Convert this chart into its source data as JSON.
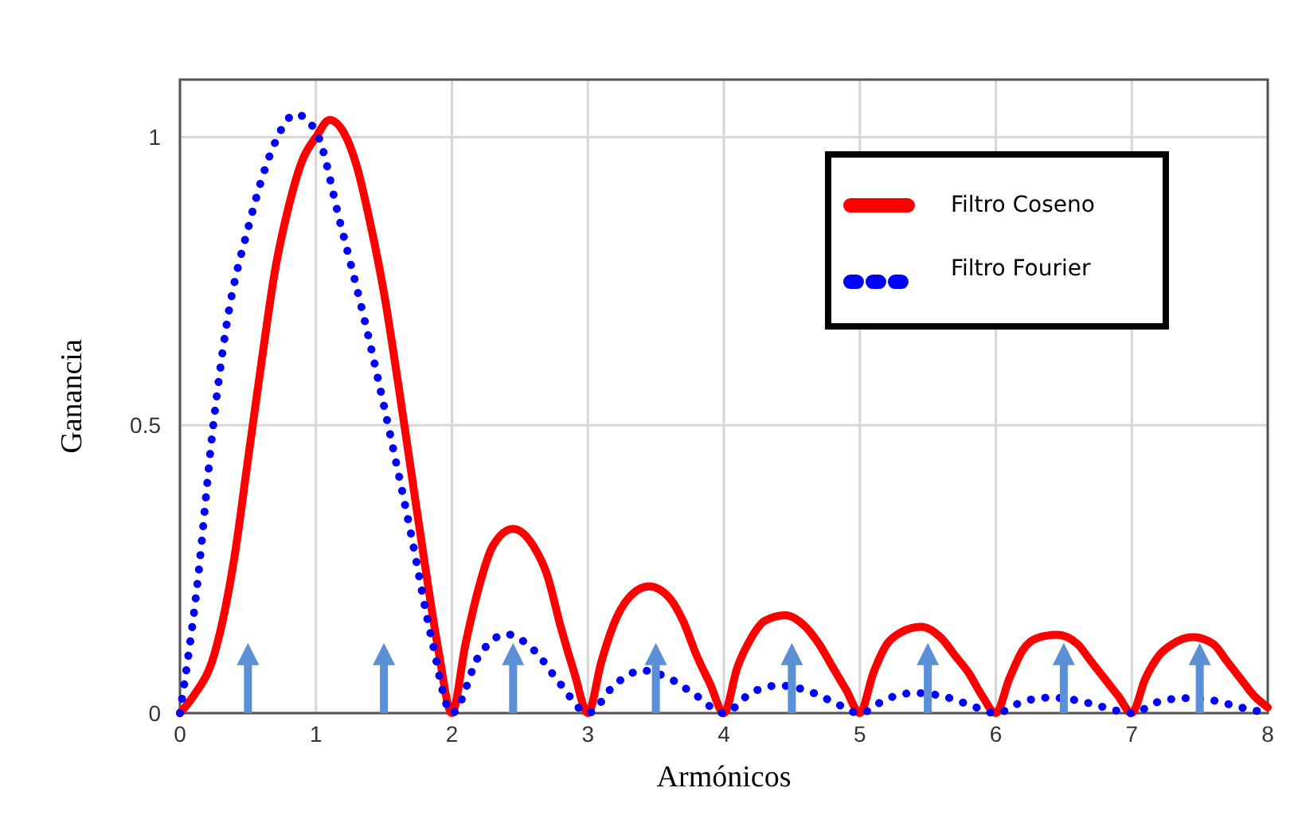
{
  "chart_data": {
    "type": "line",
    "xlabel": "Armónicos",
    "ylabel": "Ganancia",
    "xlim": [
      0,
      8
    ],
    "ylim": [
      0,
      1.1
    ],
    "xticks": [
      0,
      1,
      2,
      3,
      4,
      5,
      6,
      7,
      8
    ],
    "yticks": [
      0,
      0.5,
      1
    ],
    "grid": true,
    "legend": "top right",
    "series": [
      {
        "name": "Filtro Coseno",
        "color": "#ff0000",
        "line_style": "solid",
        "x": [
          0,
          0.1,
          0.25,
          0.4,
          0.5,
          0.6,
          0.7,
          0.8,
          0.9,
          1,
          1.1,
          1.2,
          1.3,
          1.4,
          1.5,
          1.6,
          1.7,
          1.8,
          1.9,
          2,
          2.1,
          2.2,
          2.3,
          2.45,
          2.6,
          2.7,
          2.8,
          2.9,
          3,
          3.1,
          3.2,
          3.3,
          3.45,
          3.6,
          3.7,
          3.8,
          3.9,
          4,
          4.1,
          4.2,
          4.3,
          4.45,
          4.6,
          4.7,
          4.8,
          4.9,
          5,
          5.1,
          5.2,
          5.3,
          5.45,
          5.6,
          5.7,
          5.8,
          5.9,
          6,
          6.1,
          6.2,
          6.3,
          6.45,
          6.6,
          6.7,
          6.8,
          6.9,
          7,
          7.1,
          7.2,
          7.3,
          7.45,
          7.6,
          7.7,
          7.8,
          7.9,
          8
        ],
        "values": [
          0,
          0.03,
          0.1,
          0.27,
          0.44,
          0.61,
          0.77,
          0.88,
          0.96,
          1,
          1.03,
          1.01,
          0.95,
          0.85,
          0.73,
          0.58,
          0.42,
          0.26,
          0.11,
          0,
          0.12,
          0.22,
          0.29,
          0.32,
          0.29,
          0.24,
          0.15,
          0.07,
          0,
          0.09,
          0.16,
          0.2,
          0.22,
          0.2,
          0.16,
          0.1,
          0.05,
          0,
          0.08,
          0.13,
          0.16,
          0.17,
          0.15,
          0.12,
          0.08,
          0.04,
          0,
          0.07,
          0.12,
          0.14,
          0.15,
          0.13,
          0.1,
          0.07,
          0.03,
          0,
          0.06,
          0.11,
          0.13,
          0.136,
          0.12,
          0.09,
          0.06,
          0.03,
          0,
          0.06,
          0.1,
          0.12,
          0.132,
          0.12,
          0.09,
          0.06,
          0.03,
          0.01
        ]
      },
      {
        "name": "Filtro Fourier",
        "color": "#0000ff",
        "line_style": "dotted",
        "x": [
          0,
          0.126,
          0.24,
          0.34,
          0.51,
          0.68,
          0.85,
          1,
          1.18,
          1.37,
          1.54,
          1.7,
          1.85,
          2,
          2.2,
          2.4,
          2.6,
          2.8,
          3,
          3.2,
          3.4,
          3.6,
          3.8,
          4,
          4.2,
          4.4,
          4.6,
          4.8,
          5,
          5.2,
          5.4,
          5.6,
          5.8,
          6,
          6.2,
          6.4,
          6.6,
          6.8,
          7,
          7.2,
          7.4,
          7.6,
          7.8,
          8
        ],
        "values": [
          0,
          0.22,
          0.49,
          0.67,
          0.85,
          0.98,
          1.04,
          1.01,
          0.85,
          0.67,
          0.49,
          0.31,
          0.13,
          0,
          0.1,
          0.137,
          0.11,
          0.05,
          0,
          0.05,
          0.074,
          0.06,
          0.03,
          0,
          0.035,
          0.048,
          0.04,
          0.02,
          0,
          0.025,
          0.035,
          0.03,
          0.015,
          0,
          0.02,
          0.027,
          0.022,
          0.01,
          0,
          0.02,
          0.026,
          0.022,
          0.01,
          0
        ]
      },
      {
        "type": "lollipop",
        "marker": "triangle",
        "color": "#5b8fd6",
        "x": [
          0.5,
          1.5,
          2.45,
          3.5,
          4.5,
          5.5,
          6.5,
          7.5
        ],
        "values": [
          0.1,
          0.1,
          0.1,
          0.1,
          0.1,
          0.1,
          0.1,
          0.1
        ]
      }
    ]
  }
}
